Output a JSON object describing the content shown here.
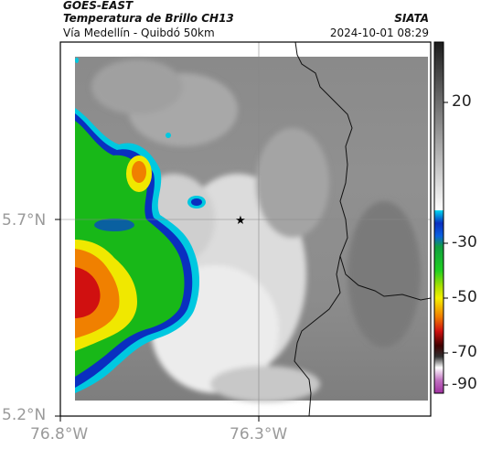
{
  "header": {
    "satellite": "GOES-EAST",
    "product": "Temperatura de Brillo CH13",
    "organization": "SIATA",
    "route": "Vía Medellín - Quibdó 50km",
    "datetime": "2024-10-01 08:29"
  },
  "map": {
    "lat_ticks": [
      "5.7°N",
      "5.2°N"
    ],
    "lon_ticks": [
      "76.8°W",
      "76.3°W"
    ],
    "marker": "star"
  },
  "colorbar": {
    "ticks": [
      "20",
      "-30",
      "-50",
      "-70",
      "-90"
    ],
    "colors": {
      "warm_gray_top": "#1c1c1c",
      "warm_gray_bottom": "#ffffff",
      "cyan": "#00c8e0",
      "blue": "#0a2fc0",
      "green": "#20c020",
      "yellow": "#f5f000",
      "orange": "#f08000",
      "red": "#d01010",
      "darkred": "#400000",
      "magenta": "#c040c0"
    }
  }
}
